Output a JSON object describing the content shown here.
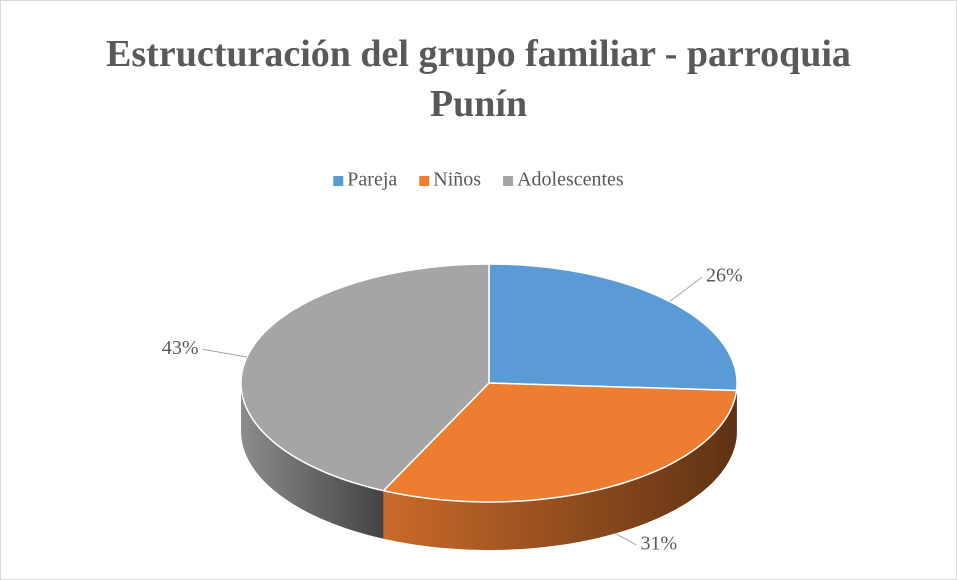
{
  "chart_data": {
    "type": "pie",
    "title": "Estructuración del grupo familiar - parroquia Punín",
    "categories": [
      "Pareja",
      "Niños",
      "Adolescentes"
    ],
    "values": [
      26,
      31,
      43
    ],
    "value_labels": [
      "26%",
      "31%",
      "43%"
    ],
    "colors": [
      "#5b9bd5",
      "#ed7d31",
      "#a5a5a5"
    ],
    "legend": "top"
  }
}
